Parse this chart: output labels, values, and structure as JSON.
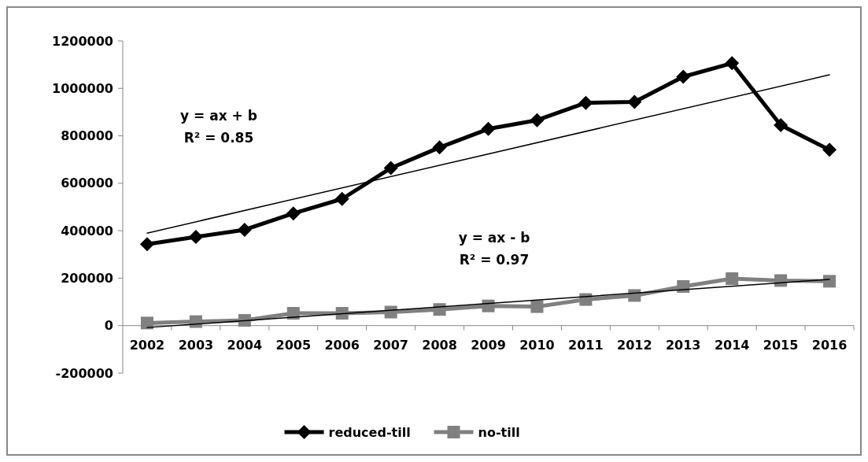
{
  "chart_data": {
    "type": "line",
    "categories": [
      "2002",
      "2003",
      "2004",
      "2005",
      "2006",
      "2007",
      "2008",
      "2009",
      "2010",
      "2011",
      "2012",
      "2013",
      "2014",
      "2015",
      "2016"
    ],
    "series": [
      {
        "name": "reduced-till",
        "color": "#000000",
        "marker": "diamond",
        "values": [
          343000,
          374000,
          404000,
          473000,
          534000,
          664000,
          751000,
          829000,
          866000,
          939000,
          943000,
          1049000,
          1106000,
          845000,
          741000
        ]
      },
      {
        "name": "no-till",
        "color": "#808080",
        "marker": "square",
        "values": [
          11000,
          17000,
          22000,
          52000,
          52000,
          57000,
          68000,
          83000,
          80000,
          110000,
          127000,
          165000,
          198000,
          190000,
          187000
        ]
      },
      {
        "type": "line",
        "color": "#000000",
        "marker": "none",
        "values": [
          390000,
          null,
          null,
          null,
          null,
          null,
          null,
          null,
          null,
          null,
          null,
          null,
          null,
          null,
          1057000
        ]
      },
      {
        "type": "line",
        "color": "#000000",
        "marker": "none",
        "values": [
          -8000,
          null,
          null,
          null,
          null,
          null,
          null,
          null,
          null,
          null,
          null,
          null,
          null,
          null,
          195000
        ]
      }
    ],
    "ylim": [
      -200000,
      1200000
    ],
    "yticks": [
      -200000,
      0,
      200000,
      400000,
      600000,
      800000,
      1000000,
      1200000
    ],
    "annotations": [
      "y = ax + b\nR² = 0.85",
      "y = ax - b\nR² = 0.97"
    ],
    "legend": "bottom"
  }
}
